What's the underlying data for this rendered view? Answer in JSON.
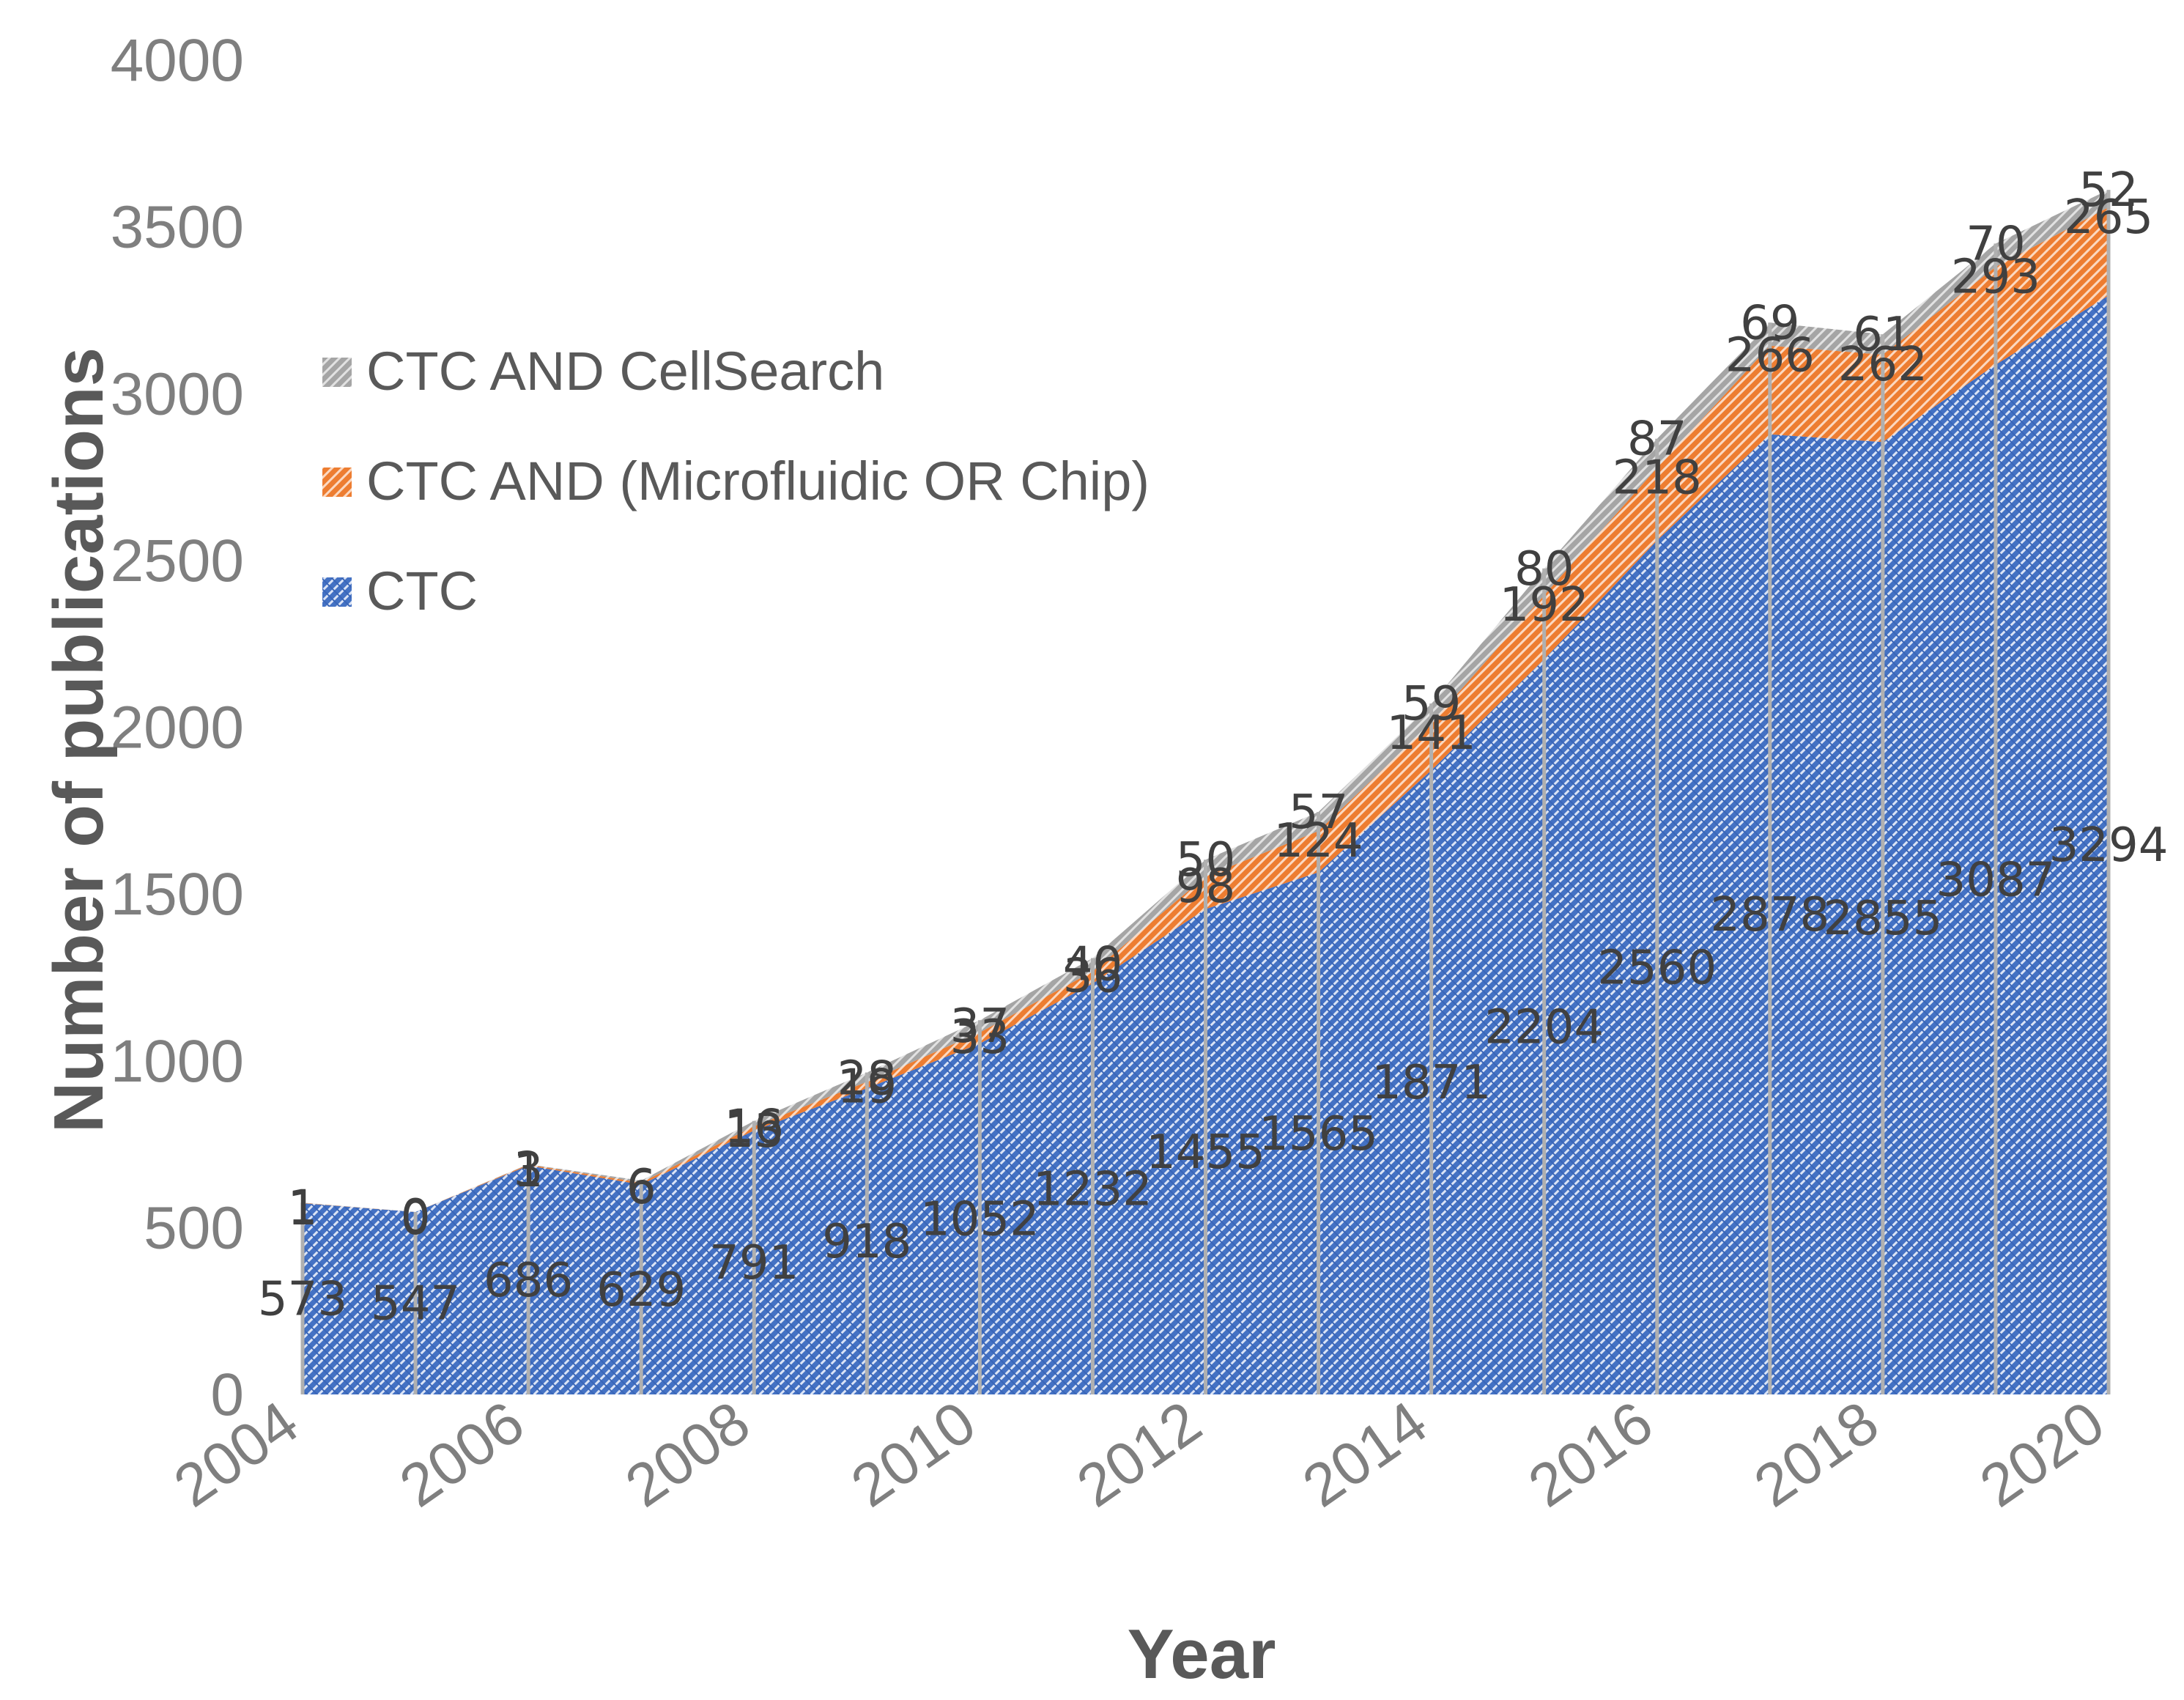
{
  "chart_data": {
    "type": "area",
    "stacked": true,
    "title": "",
    "xlabel": "Year",
    "ylabel": "Number of publications",
    "x": [
      2004,
      2005,
      2006,
      2007,
      2008,
      2009,
      2010,
      2011,
      2012,
      2013,
      2014,
      2015,
      2016,
      2017,
      2018,
      2019,
      2020
    ],
    "x_ticks": [
      "2004",
      "2006",
      "2008",
      "2010",
      "2012",
      "2014",
      "2016",
      "2018",
      "2020"
    ],
    "y_ticks": [
      "0",
      "500",
      "1000",
      "1500",
      "2000",
      "2500",
      "3000",
      "3500",
      "4000"
    ],
    "ylim": [
      0,
      4000
    ],
    "legend_position": "upper-left",
    "series": [
      {
        "name": "CTC",
        "color": "#4472c4",
        "values": [
          573,
          547,
          686,
          629,
          791,
          918,
          1052,
          1232,
          1455,
          1565,
          1871,
          2204,
          2560,
          2878,
          2855,
          3087,
          3294
        ]
      },
      {
        "name": "CTC AND (Microfluidic OR Chip)",
        "color": "#ed7d31",
        "values": [
          1,
          0,
          3,
          6,
          13,
          19,
          33,
          36,
          98,
          124,
          141,
          192,
          218,
          266,
          262,
          293,
          265
        ]
      },
      {
        "name": "CTC AND CellSearch",
        "color": "#a5a5a5",
        "values": [
          1,
          0,
          1,
          6,
          16,
          28,
          37,
          40,
          50,
          57,
          59,
          80,
          87,
          69,
          61,
          70,
          52
        ]
      }
    ],
    "legend": [
      "CTC AND CellSearch",
      "CTC AND (Microfluidic OR Chip)",
      "CTC"
    ]
  }
}
